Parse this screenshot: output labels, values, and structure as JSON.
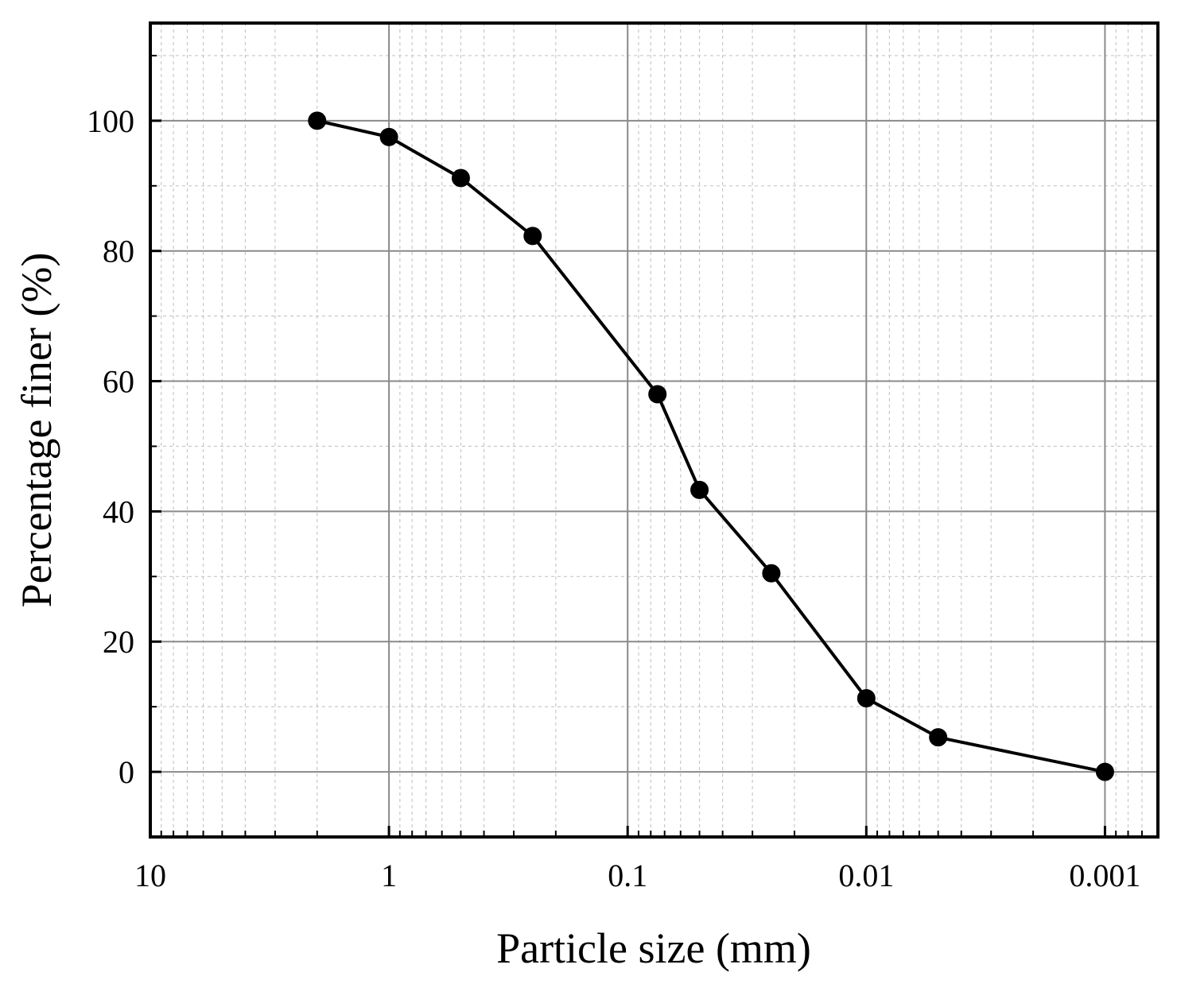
{
  "chart_data": {
    "type": "line",
    "title": "",
    "xlabel": "Particle size (mm)",
    "ylabel": "Percentage finer (%)",
    "x_scale": "log",
    "x_reversed": true,
    "xlim": [
      10,
      0.0006
    ],
    "ylim": [
      -10,
      115
    ],
    "x_ticks": [
      10,
      1,
      0.1,
      0.01,
      0.001
    ],
    "x_tick_labels": [
      "10",
      "1",
      "0.1",
      "0.01",
      "0.001"
    ],
    "y_ticks": [
      0,
      20,
      40,
      60,
      80,
      100
    ],
    "y_tick_labels": [
      "0",
      "20",
      "40",
      "60",
      "80",
      "100"
    ],
    "grid": true,
    "legend": "none",
    "series": [
      {
        "x": [
          2,
          1,
          0.5,
          0.25,
          0.075,
          0.05,
          0.025,
          0.01,
          0.005,
          0.001
        ],
        "y": [
          100,
          97.5,
          91.2,
          82.3,
          58,
          43.3,
          30.5,
          11.3,
          5.3,
          0
        ]
      }
    ],
    "colors": {
      "line": "#000000",
      "marker": "#000000",
      "grid_major": "#8a8a8a",
      "grid_minor": "#c8c8c8",
      "axis": "#000000"
    }
  }
}
